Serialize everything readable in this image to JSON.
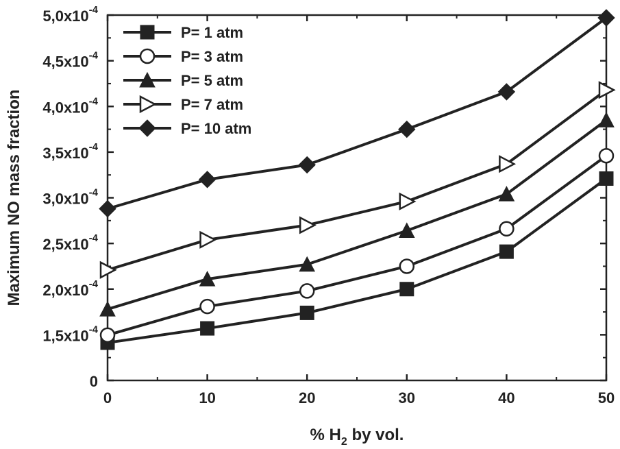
{
  "chart_data": {
    "type": "line",
    "title": "",
    "xlabel_parts": {
      "pre": "% H",
      "sub": "2",
      "post": " by vol."
    },
    "ylabel": "Maximum NO mass fraction",
    "x": [
      0,
      10,
      20,
      30,
      40,
      50
    ],
    "xlim": [
      0,
      50
    ],
    "x_ticks": [
      "0",
      "10",
      "20",
      "30",
      "40",
      "50"
    ],
    "y_tick_values": [
      0,
      0.00015,
      0.0002,
      0.00025,
      0.0003,
      0.00035,
      0.0004,
      0.00045,
      0.0005
    ],
    "y_ticks": [
      {
        "mantissa": "0",
        "exp": ""
      },
      {
        "mantissa": "1,5x10",
        "exp": "-4"
      },
      {
        "mantissa": "2,0x10",
        "exp": "-4"
      },
      {
        "mantissa": "2,5x10",
        "exp": "-4"
      },
      {
        "mantissa": "3,0x10",
        "exp": "-4"
      },
      {
        "mantissa": "3,5x10",
        "exp": "-4"
      },
      {
        "mantissa": "4,0x10",
        "exp": "-4"
      },
      {
        "mantissa": "4,5x10",
        "exp": "-4"
      },
      {
        "mantissa": "5,0x10",
        "exp": "-4"
      }
    ],
    "axis_break_note": "y axis jumps from 0 to 1.5x10^-4 with equal tick spacing",
    "grid": false,
    "legend_position": "top-left",
    "series": [
      {
        "name": "P= 1 atm",
        "marker": "square-filled",
        "values": [
          0.000124,
          0.000157,
          0.000174,
          0.0002,
          0.000241,
          0.000321
        ]
      },
      {
        "name": "P= 3 atm",
        "marker": "circle-open",
        "values": [
          0.000149,
          0.000181,
          0.000198,
          0.000225,
          0.000266,
          0.000346
        ]
      },
      {
        "name": "P= 5 atm",
        "marker": "triangle-up-filled",
        "values": [
          0.000178,
          0.000211,
          0.000227,
          0.000264,
          0.000304,
          0.000385
        ]
      },
      {
        "name": "P= 7 atm",
        "marker": "triangle-right-open",
        "values": [
          0.000221,
          0.000254,
          0.00027,
          0.000296,
          0.000337,
          0.000418
        ]
      },
      {
        "name": "P= 10 atm",
        "marker": "diamond-filled",
        "values": [
          0.000288,
          0.00032,
          0.000336,
          0.000375,
          0.000416,
          0.000497
        ]
      }
    ]
  }
}
